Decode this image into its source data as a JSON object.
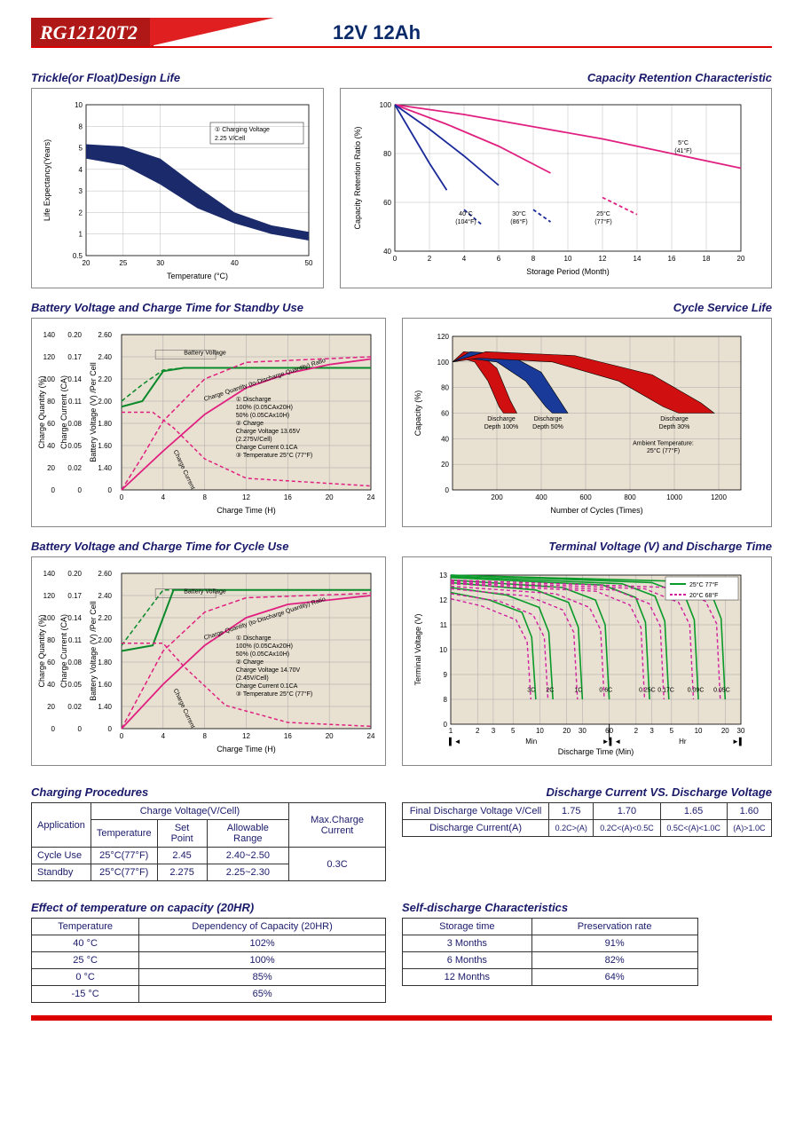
{
  "header": {
    "model": "RG12120T2",
    "spec": "12V 12Ah"
  },
  "charts": {
    "trickle": {
      "title": "Trickle(or Float)Design Life",
      "xlabel": "Temperature (°C)",
      "ylabel": "Life Expectancy(Years)",
      "xticks": [
        "20",
        "25",
        "30",
        "40",
        "50"
      ],
      "yticks": [
        "0.5",
        "1",
        "2",
        "3",
        "4",
        "5",
        "8",
        "10"
      ],
      "legend": "① Charging Voltage 2.25 V/Cell",
      "band_color": "#1a2a6a",
      "upper": [
        [
          20,
          5.5
        ],
        [
          25,
          5.2
        ],
        [
          30,
          4.5
        ],
        [
          35,
          3.2
        ],
        [
          40,
          2.0
        ],
        [
          45,
          1.4
        ],
        [
          50,
          1.1
        ]
      ],
      "lower": [
        [
          20,
          4.5
        ],
        [
          25,
          4.2
        ],
        [
          30,
          3.3
        ],
        [
          35,
          2.2
        ],
        [
          40,
          1.5
        ],
        [
          45,
          1.0
        ],
        [
          50,
          0.85
        ]
      ]
    },
    "retention": {
      "title": "Capacity Retention Characteristic",
      "xlabel": "Storage Period (Month)",
      "ylabel": "Capacity Retention Ratio (%)",
      "xlim": [
        0,
        20
      ],
      "ylim": [
        40,
        100
      ],
      "xticks": [
        0,
        2,
        4,
        6,
        8,
        10,
        12,
        14,
        16,
        18,
        20
      ],
      "yticks": [
        40,
        60,
        80,
        100
      ],
      "series": [
        {
          "label": "5°C (41°F)",
          "color": "#e02080",
          "points": [
            [
              0,
              100
            ],
            [
              4,
              96
            ],
            [
              8,
              91
            ],
            [
              12,
              86
            ],
            [
              16,
              80
            ],
            [
              20,
              74
            ]
          ]
        },
        {
          "label": "25°C (77°F)",
          "color": "#e02080",
          "points": [
            [
              0,
              100
            ],
            [
              3,
              92
            ],
            [
              6,
              83
            ],
            [
              9,
              72
            ],
            [
              12,
              62
            ],
            [
              14,
              55
            ]
          ],
          "dash_after": 11
        },
        {
          "label": "30°C (86°F)",
          "color": "#1a2a9a",
          "points": [
            [
              0,
              100
            ],
            [
              2,
              90
            ],
            [
              4,
              79
            ],
            [
              6,
              67
            ],
            [
              8,
              57
            ],
            [
              9,
              52
            ]
          ],
          "dash_after": 7
        },
        {
          "label": "40°C (104°F)",
          "color": "#1a2a9a",
          "points": [
            [
              0,
              100
            ],
            [
              1,
              88
            ],
            [
              2,
              76
            ],
            [
              3,
              65
            ],
            [
              4,
              57
            ],
            [
              5,
              51
            ]
          ],
          "dash_after": 3.5
        }
      ]
    },
    "standby": {
      "title": "Battery Voltage and Charge Time for Standby Use",
      "xlabel": "Charge Time (H)",
      "y1": "Charge Quantity (%)",
      "y2": "Charge Current (CA)",
      "y3": "Battery Voltage (V) /Per Cell",
      "xticks": [
        0,
        4,
        8,
        12,
        16,
        20,
        24
      ],
      "y1ticks": [
        0,
        20,
        40,
        60,
        80,
        100,
        120,
        140
      ],
      "y2ticks": [
        "0",
        "0.02",
        "0.05",
        "0.08",
        "0.11",
        "0.14",
        "0.17",
        "0.20"
      ],
      "y3ticks": [
        "0",
        "1.40",
        "1.60",
        "1.80",
        "2.00",
        "2.20",
        "2.40",
        "2.60"
      ],
      "legend": [
        "① Discharge",
        "   100% (0.05CAx20H)",
        "   50% (0.05CAx10H)",
        "② Charge",
        "   Charge Voltage 13.65V",
        "   (2.275V/Cell)",
        "   Charge Current 0.1CA",
        "③ Temperature 25°C (77°F)"
      ],
      "bv100": {
        "color": "#0a8a2a",
        "points": [
          [
            0,
            1.95
          ],
          [
            2,
            2.0
          ],
          [
            4,
            2.27
          ],
          [
            6,
            2.3
          ],
          [
            24,
            2.3
          ]
        ]
      },
      "bv50": {
        "color": "#0a8a2a",
        "dash": true,
        "points": [
          [
            0,
            2.0
          ],
          [
            2,
            2.15
          ],
          [
            4,
            2.28
          ],
          [
            6,
            2.3
          ],
          [
            24,
            2.3
          ]
        ]
      },
      "cq100": {
        "color": "#e02080",
        "points": [
          [
            0,
            0
          ],
          [
            4,
            35
          ],
          [
            8,
            68
          ],
          [
            12,
            92
          ],
          [
            16,
            105
          ],
          [
            20,
            113
          ],
          [
            24,
            118
          ]
        ]
      },
      "cq50": {
        "color": "#e02080",
        "dash": true,
        "points": [
          [
            0,
            0
          ],
          [
            2,
            30
          ],
          [
            4,
            62
          ],
          [
            8,
            100
          ],
          [
            12,
            115
          ],
          [
            24,
            120
          ]
        ]
      },
      "cc": {
        "color": "#e02080",
        "dash": true,
        "points": [
          [
            0,
            0.1
          ],
          [
            3,
            0.1
          ],
          [
            5,
            0.08
          ],
          [
            8,
            0.04
          ],
          [
            12,
            0.015
          ],
          [
            24,
            0.005
          ]
        ]
      }
    },
    "cyclelife": {
      "title": "Cycle Service Life",
      "xlabel": "Number of Cycles (Times)",
      "ylabel": "Capacity (%)",
      "xlim": [
        0,
        1300
      ],
      "ylim": [
        0,
        120
      ],
      "xticks": [
        200,
        400,
        600,
        800,
        1000,
        1200
      ],
      "yticks": [
        0,
        20,
        40,
        60,
        80,
        100,
        120
      ],
      "ambient": "Ambient Temperature: 25°C (77°F)",
      "wedges": [
        {
          "label": "Discharge Depth 100%",
          "color": "#d01010",
          "upper": [
            [
              0,
              100
            ],
            [
              50,
              108
            ],
            [
              120,
              107
            ],
            [
              200,
              95
            ],
            [
              260,
              70
            ],
            [
              290,
              60
            ]
          ],
          "lower": [
            [
              0,
              100
            ],
            [
              40,
              103
            ],
            [
              100,
              100
            ],
            [
              160,
              85
            ],
            [
              210,
              65
            ],
            [
              230,
              60
            ]
          ]
        },
        {
          "label": "Discharge Depth 50%",
          "color": "#1a3a9a",
          "upper": [
            [
              0,
              100
            ],
            [
              80,
              108
            ],
            [
              250,
              106
            ],
            [
              400,
              92
            ],
            [
              490,
              68
            ],
            [
              520,
              60
            ]
          ],
          "lower": [
            [
              0,
              100
            ],
            [
              60,
              103
            ],
            [
              200,
              100
            ],
            [
              330,
              85
            ],
            [
              420,
              65
            ],
            [
              450,
              60
            ]
          ]
        },
        {
          "label": "Discharge Depth 30%",
          "color": "#d01010",
          "upper": [
            [
              0,
              100
            ],
            [
              150,
              108
            ],
            [
              550,
              105
            ],
            [
              900,
              90
            ],
            [
              1120,
              68
            ],
            [
              1180,
              60
            ]
          ],
          "lower": [
            [
              0,
              100
            ],
            [
              120,
              103
            ],
            [
              450,
              100
            ],
            [
              750,
              85
            ],
            [
              950,
              65
            ],
            [
              1020,
              60
            ]
          ]
        }
      ]
    },
    "cycle_charge": {
      "title": "Battery Voltage and Charge Time for Cycle Use",
      "legend": [
        "① Discharge",
        "   100% (0.05CAx20H)",
        "   50% (0.05CAx10H)",
        "② Charge",
        "   Charge Voltage 14.70V",
        "   (2.45V/Cell)",
        "   Charge Current 0.1CA",
        "③ Temperature 25°C (77°F)"
      ]
    },
    "terminal": {
      "title": "Terminal Voltage (V) and Discharge Time",
      "xlabel": "Discharge Time (Min)",
      "ylabel": "Terminal Voltage (V)",
      "yticks": [
        0,
        8,
        9,
        10,
        11,
        12,
        13
      ],
      "legend25": "25°C 77°F",
      "legend20": "20°C 68°F",
      "curve_labels": [
        "3C",
        "2C",
        "1C",
        "0.6C",
        "0.25C",
        "0.17C",
        "0.09C",
        "0.05C"
      ],
      "c25": "#0a9a2a",
      "c20": "#d020a0"
    }
  },
  "tables": {
    "charging": {
      "title": "Charging Procedures",
      "headers": [
        "Application",
        "Temperature",
        "Set Point",
        "Allowable Range",
        "Max.Charge Current"
      ],
      "group": "Charge Voltage(V/Cell)",
      "rows": [
        [
          "Cycle Use",
          "25°C(77°F)",
          "2.45",
          "2.40~2.50"
        ],
        [
          "Standby",
          "25°C(77°F)",
          "2.275",
          "2.25~2.30"
        ]
      ],
      "max_current": "0.3C"
    },
    "discharge_v": {
      "title": "Discharge Current VS. Discharge Voltage",
      "h1": "Final Discharge Voltage V/Cell",
      "h2": "Discharge Current(A)",
      "cols": [
        "1.75",
        "1.70",
        "1.65",
        "1.60"
      ],
      "vals": [
        "0.2C>(A)",
        "0.2C<(A)<0.5C",
        "0.5C<(A)<1.0C",
        "(A)>1.0C"
      ]
    },
    "temp_cap": {
      "title": "Effect of temperature on capacity (20HR)",
      "headers": [
        "Temperature",
        "Dependency of Capacity (20HR)"
      ],
      "rows": [
        [
          "40 °C",
          "102%"
        ],
        [
          "25 °C",
          "100%"
        ],
        [
          "0 °C",
          "85%"
        ],
        [
          "-15 °C",
          "65%"
        ]
      ]
    },
    "self_discharge": {
      "title": "Self-discharge Characteristics",
      "headers": [
        "Storage time",
        "Preservation rate"
      ],
      "rows": [
        [
          "3 Months",
          "91%"
        ],
        [
          "6 Months",
          "82%"
        ],
        [
          "12 Months",
          "64%"
        ]
      ]
    }
  }
}
